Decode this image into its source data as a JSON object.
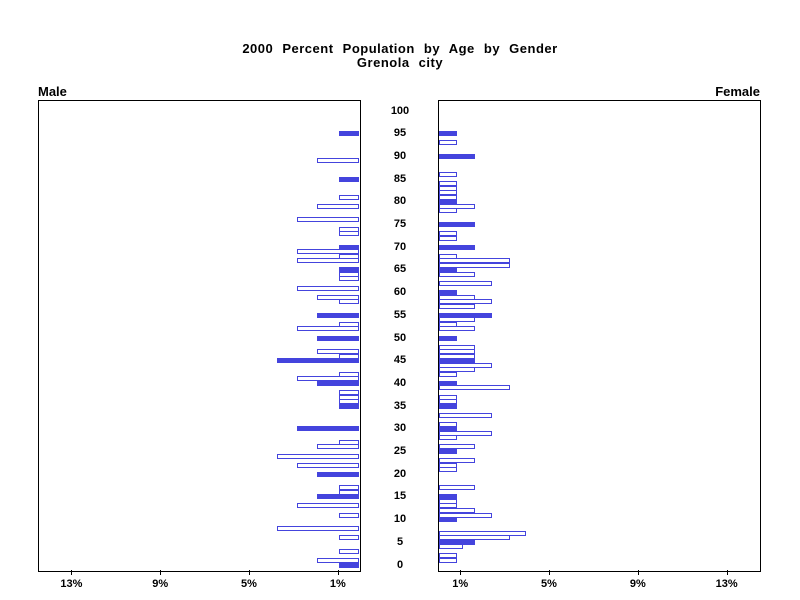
{
  "title": {
    "line1": "2000 Percent Population by Age by Gender",
    "line2": "Grenola city"
  },
  "panel_labels": {
    "male": "Male",
    "female": "Female"
  },
  "colors": {
    "bar": "#4444dd",
    "axis": "#000000",
    "background": "#ffffff"
  },
  "chart_data": {
    "type": "bar",
    "subtype": "population-pyramid",
    "title": "2000 Percent Population by Age by Gender",
    "subtitle": "Grenola city",
    "legend_position": "none",
    "grid": false,
    "age_axis": {
      "label_ticks": [
        0,
        5,
        10,
        15,
        20,
        25,
        30,
        35,
        40,
        45,
        50,
        55,
        60,
        65,
        70,
        75,
        80,
        85,
        90,
        95,
        100
      ],
      "min": 0,
      "max": 100
    },
    "pct_axis": {
      "tick_values": [
        1,
        5,
        9,
        13
      ],
      "male_tick_labels": [
        "13%",
        "9%",
        "5%",
        "1%"
      ],
      "female_tick_labels": [
        "1%",
        "5%",
        "9%",
        "13%"
      ],
      "max": 14.5
    },
    "fill_rule": "bars at ages divisible by 5 are solid blue; all other ages are white with blue outline",
    "series": [
      {
        "name": "Male",
        "points": [
          [
            95,
            0.9
          ],
          [
            89,
            1.9
          ],
          [
            85,
            0.9
          ],
          [
            81,
            0.9
          ],
          [
            79,
            1.9
          ],
          [
            76,
            2.8
          ],
          [
            74,
            0.9
          ],
          [
            73,
            0.9
          ],
          [
            70,
            0.9
          ],
          [
            69,
            2.8
          ],
          [
            68,
            0.9
          ],
          [
            67,
            2.8
          ],
          [
            65,
            0.9
          ],
          [
            64,
            0.9
          ],
          [
            63,
            0.9
          ],
          [
            61,
            2.8
          ],
          [
            59,
            1.9
          ],
          [
            58,
            0.9
          ],
          [
            55,
            1.9
          ],
          [
            53,
            0.9
          ],
          [
            52,
            2.8
          ],
          [
            50,
            1.9
          ],
          [
            47,
            1.9
          ],
          [
            46,
            0.9
          ],
          [
            45,
            3.7
          ],
          [
            42,
            0.9
          ],
          [
            41,
            2.8
          ],
          [
            40,
            1.9
          ],
          [
            38,
            0.9
          ],
          [
            37,
            0.9
          ],
          [
            36,
            0.9
          ],
          [
            35,
            0.9
          ],
          [
            30,
            2.8
          ],
          [
            27,
            0.9
          ],
          [
            26,
            1.9
          ],
          [
            24,
            3.7
          ],
          [
            22,
            2.8
          ],
          [
            20,
            1.9
          ],
          [
            17,
            0.9
          ],
          [
            16,
            0.9
          ],
          [
            15,
            1.9
          ],
          [
            13,
            2.8
          ],
          [
            11,
            0.9
          ],
          [
            8,
            3.7
          ],
          [
            6,
            0.9
          ],
          [
            3,
            0.9
          ],
          [
            1,
            1.9
          ],
          [
            0,
            0.9
          ]
        ]
      },
      {
        "name": "Female",
        "points": [
          [
            95,
            0.8
          ],
          [
            93,
            0.8
          ],
          [
            90,
            1.6
          ],
          [
            86,
            0.8
          ],
          [
            84,
            0.8
          ],
          [
            83,
            0.8
          ],
          [
            82,
            0.8
          ],
          [
            81,
            0.8
          ],
          [
            80,
            0.8
          ],
          [
            79,
            1.6
          ],
          [
            78,
            0.8
          ],
          [
            75,
            1.6
          ],
          [
            73,
            0.8
          ],
          [
            72,
            0.8
          ],
          [
            70,
            1.6
          ],
          [
            68,
            0.8
          ],
          [
            67,
            3.2
          ],
          [
            66,
            3.2
          ],
          [
            65,
            0.8
          ],
          [
            64,
            1.6
          ],
          [
            62,
            2.4
          ],
          [
            60,
            0.8
          ],
          [
            59,
            1.6
          ],
          [
            58,
            2.4
          ],
          [
            57,
            1.6
          ],
          [
            55,
            2.4
          ],
          [
            54,
            1.6
          ],
          [
            53,
            0.8
          ],
          [
            52,
            1.6
          ],
          [
            50,
            0.8
          ],
          [
            48,
            1.6
          ],
          [
            47,
            1.6
          ],
          [
            46,
            1.6
          ],
          [
            45,
            1.6
          ],
          [
            44,
            2.4
          ],
          [
            43,
            1.6
          ],
          [
            42,
            0.8
          ],
          [
            40,
            0.8
          ],
          [
            39,
            3.2
          ],
          [
            37,
            0.8
          ],
          [
            36,
            0.8
          ],
          [
            35,
            0.8
          ],
          [
            33,
            2.4
          ],
          [
            31,
            0.8
          ],
          [
            30,
            0.8
          ],
          [
            29,
            2.4
          ],
          [
            28,
            0.8
          ],
          [
            26,
            1.6
          ],
          [
            25,
            0.8
          ],
          [
            23,
            1.6
          ],
          [
            22,
            0.8
          ],
          [
            21,
            0.8
          ],
          [
            17,
            1.6
          ],
          [
            15,
            0.8
          ],
          [
            14,
            0.8
          ],
          [
            13,
            0.8
          ],
          [
            12,
            1.6
          ],
          [
            11,
            2.4
          ],
          [
            10,
            0.8
          ],
          [
            7,
            3.9
          ],
          [
            6,
            3.2
          ],
          [
            5,
            1.6
          ],
          [
            4,
            1.1
          ],
          [
            2,
            0.8
          ],
          [
            1,
            0.8
          ]
        ]
      }
    ]
  }
}
